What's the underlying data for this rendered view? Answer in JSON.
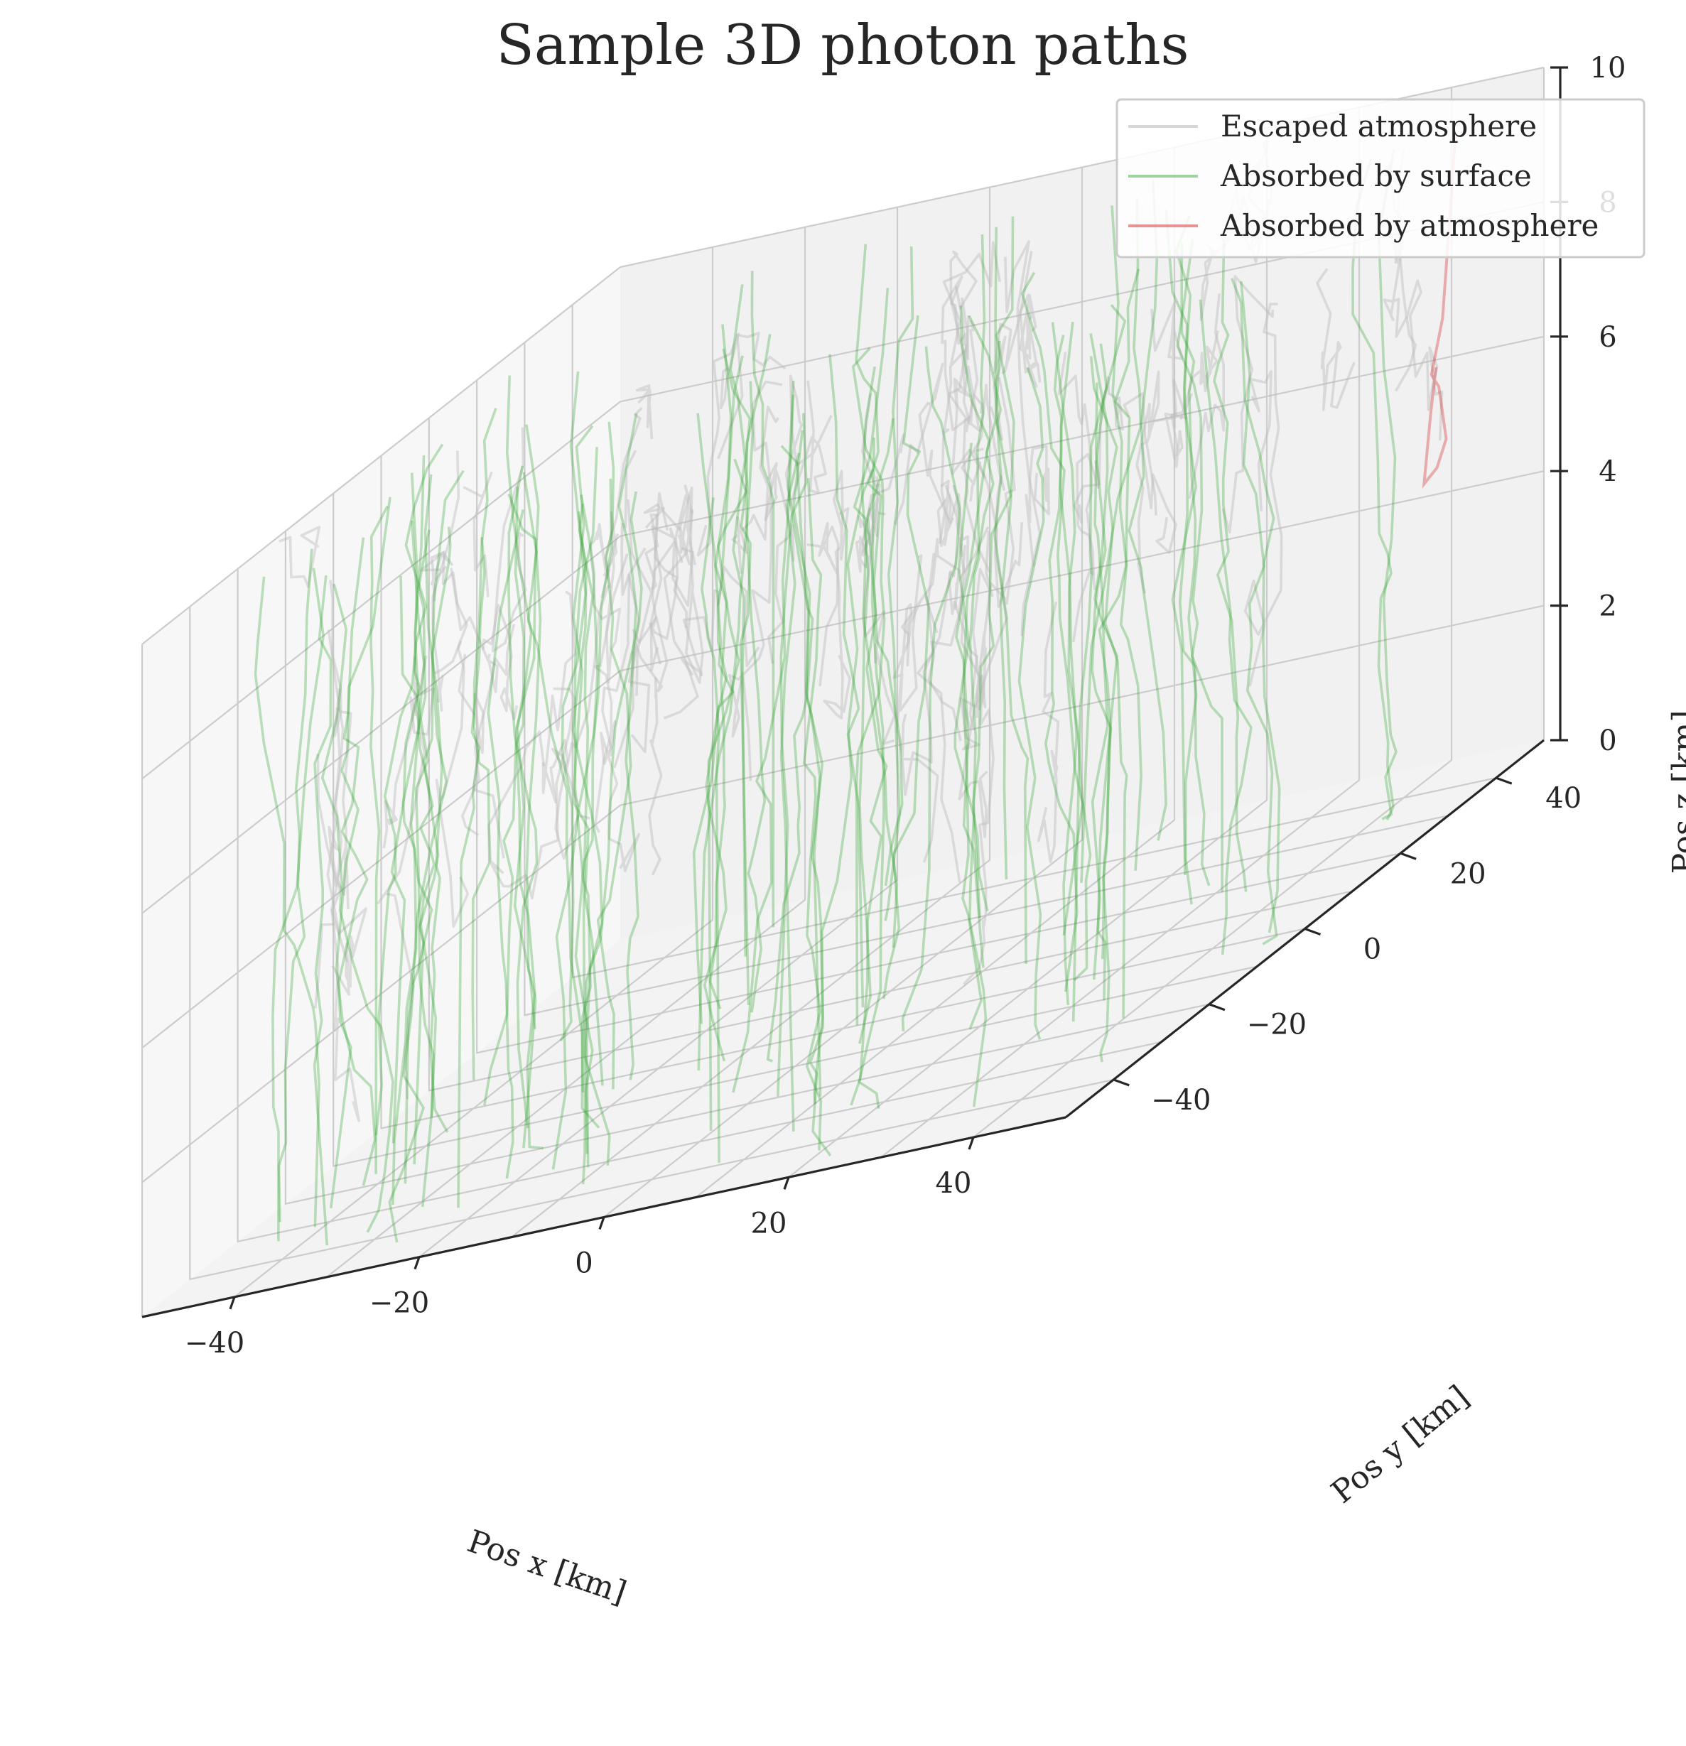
{
  "chart_data": {
    "type": "line3d",
    "title": "Sample 3D photon paths",
    "xlabel": "Pos x [km]",
    "ylabel": "Pos y [km]",
    "zlabel": "Pos z [km]",
    "xlim": [
      -50,
      50
    ],
    "ylim": [
      -50,
      50
    ],
    "zlim": [
      0,
      10
    ],
    "xticks": [
      -40,
      -20,
      0,
      20,
      40
    ],
    "yticks": [
      -40,
      -20,
      0,
      20,
      40
    ],
    "zticks": [
      0,
      2,
      4,
      6,
      8,
      10
    ],
    "xtick_labels": [
      "−40",
      "−20",
      "0",
      "20",
      "40"
    ],
    "ytick_labels": [
      "−40",
      "−20",
      "0",
      "20",
      "40"
    ],
    "ztick_labels": [
      "0",
      "2",
      "4",
      "6",
      "8",
      "10"
    ],
    "grid": true,
    "legend_position": "top-right",
    "series": [
      {
        "name": "Escaped atmosphere",
        "color": "#bdbdbd",
        "opacity": 0.45,
        "approx_count": 90
      },
      {
        "name": "Absorbed by surface",
        "color": "#2ca02c",
        "opacity": 0.3,
        "approx_count": 95
      },
      {
        "name": "Absorbed by atmosphere",
        "color": "#d62728",
        "opacity": 0.35,
        "approx_count": 1,
        "paths": [
          [
            [
              45.6,
              40.0,
              9.7
            ],
            [
              45.0,
              40.0,
              8.5
            ],
            [
              44.2,
              40.0,
              7.0
            ],
            [
              43.0,
              40.0,
              6.2
            ],
            [
              43.8,
              40.0,
              6.0
            ],
            [
              44.6,
              40.0,
              5.2
            ],
            [
              43.6,
              40.0,
              4.8
            ],
            [
              42.2,
              40.0,
              4.6
            ],
            [
              42.9,
              40.0,
              5.6
            ],
            [
              43.5,
              40.0,
              6.3
            ]
          ]
        ]
      }
    ]
  }
}
